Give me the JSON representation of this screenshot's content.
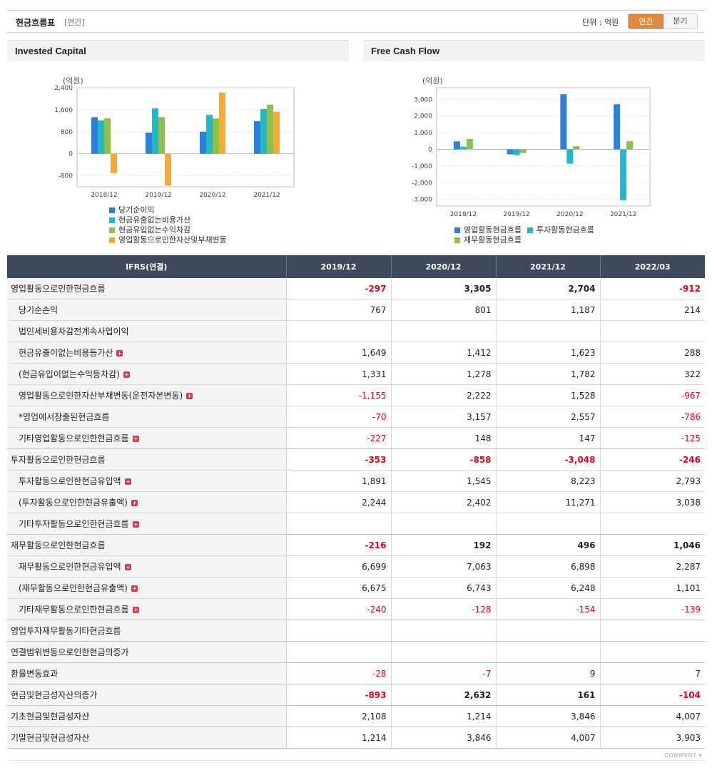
{
  "header": {
    "title": "현금흐름표",
    "period_tag": "[연간]",
    "unit": "단위 : 억원",
    "toggle": {
      "annual": "연간",
      "quarter": "분기",
      "selected": "annual"
    }
  },
  "charts": {
    "left_title": "Invested Capital",
    "right_title": "Free Cash Flow"
  },
  "chart_data": [
    {
      "type": "bar",
      "title": "Invested Capital",
      "unit_label": "(억원)",
      "categories": [
        "2018/12",
        "2019/12",
        "2020/12",
        "2021/12"
      ],
      "ylim": [
        -1200,
        2400
      ],
      "yticks": [
        2400,
        1600,
        800,
        0,
        -800
      ],
      "ytick_labels": [
        "2,400",
        "1,600",
        "800",
        "0",
        "-800"
      ],
      "grid": true,
      "legend_position": "bottom",
      "series": [
        {
          "name": "당기순이익",
          "color": "#2d7fd8",
          "values": [
            1330,
            767,
            801,
            1187
          ]
        },
        {
          "name": "현금유출없는비용가산",
          "color": "#1fb9c9",
          "values": [
            1210,
            1649,
            1412,
            1623
          ]
        },
        {
          "name": "현금유입없는수익차감",
          "color": "#8cc152",
          "values": [
            1290,
            1331,
            1278,
            1782
          ]
        },
        {
          "name": "영업활동으로인한자산및부채변동",
          "color": "#f9a830",
          "values": [
            -700,
            -1155,
            2222,
            1528
          ]
        }
      ]
    },
    {
      "type": "bar",
      "title": "Free Cash Flow",
      "unit_label": "(억원)",
      "categories": [
        "2018/12",
        "2019/12",
        "2020/12",
        "2021/12"
      ],
      "ylim": [
        -3400,
        3700
      ],
      "yticks": [
        3000,
        2000,
        1000,
        0,
        -1000,
        -2000,
        -3000
      ],
      "ytick_labels": [
        "3,000",
        "2,000",
        "1,000",
        "0",
        "-1,000",
        "-2,000",
        "-3,000"
      ],
      "grid": true,
      "legend_position": "bottom",
      "series": [
        {
          "name": "영업활동현금흐름",
          "color": "#2d7fd8",
          "values": [
            480,
            -297,
            3305,
            2704
          ]
        },
        {
          "name": "투자활동현금흐름",
          "color": "#1fb9c9",
          "values": [
            160,
            -353,
            -858,
            -3048
          ]
        },
        {
          "name": "재무활동현금흐름",
          "color": "#8cc152",
          "values": [
            620,
            -216,
            192,
            496
          ]
        }
      ]
    }
  ],
  "table": {
    "columns": [
      "IFRS(연결)",
      "2019/12",
      "2020/12",
      "2021/12",
      "2022/03"
    ],
    "rows": [
      {
        "label": "영업활동으로인한현금흐름",
        "level": 0,
        "bold": true,
        "plus": false,
        "values": [
          "-297",
          "3,305",
          "2,704",
          "-912"
        ]
      },
      {
        "label": "당기순손익",
        "level": 1,
        "bold": false,
        "plus": false,
        "values": [
          "767",
          "801",
          "1,187",
          "214"
        ]
      },
      {
        "label": "법인세비용차감전계속사업이익",
        "level": 1,
        "bold": false,
        "plus": false,
        "values": [
          "",
          "",
          "",
          ""
        ]
      },
      {
        "label": "현금유출이없는비용등가산",
        "level": 1,
        "bold": false,
        "plus": true,
        "values": [
          "1,649",
          "1,412",
          "1,623",
          "288"
        ]
      },
      {
        "label": "(현금유입이없는수익등차감)",
        "level": 1,
        "bold": false,
        "plus": true,
        "values": [
          "1,331",
          "1,278",
          "1,782",
          "322"
        ]
      },
      {
        "label": "영업활동으로인한자산부채변동(운전자본변동)",
        "level": 1,
        "bold": false,
        "plus": true,
        "values": [
          "-1,155",
          "2,222",
          "1,528",
          "-967"
        ]
      },
      {
        "label": "*영업에서창출된현금흐름",
        "level": 1,
        "bold": false,
        "plus": false,
        "values": [
          "-70",
          "3,157",
          "2,557",
          "-786"
        ]
      },
      {
        "label": "기타영업활동으로인한현금흐름",
        "level": 1,
        "bold": false,
        "plus": true,
        "values": [
          "-227",
          "148",
          "147",
          "-125"
        ]
      },
      {
        "label": "투자활동으로인한현금흐름",
        "level": 0,
        "bold": true,
        "plus": false,
        "values": [
          "-353",
          "-858",
          "-3,048",
          "-246"
        ]
      },
      {
        "label": "투자활동으로인한현금유입액",
        "level": 1,
        "bold": false,
        "plus": true,
        "values": [
          "1,891",
          "1,545",
          "8,223",
          "2,793"
        ]
      },
      {
        "label": "(투자활동으로인한현금유출액)",
        "level": 1,
        "bold": false,
        "plus": true,
        "values": [
          "2,244",
          "2,402",
          "11,271",
          "3,038"
        ]
      },
      {
        "label": "기타투자활동으로인한현금흐름",
        "level": 1,
        "bold": false,
        "plus": true,
        "values": [
          "",
          "",
          "",
          ""
        ]
      },
      {
        "label": "재무활동으로인한현금흐름",
        "level": 0,
        "bold": true,
        "plus": false,
        "values": [
          "-216",
          "192",
          "496",
          "1,046"
        ]
      },
      {
        "label": "재무활동으로인한현금유입액",
        "level": 1,
        "bold": false,
        "plus": true,
        "values": [
          "6,699",
          "7,063",
          "6,898",
          "2,287"
        ]
      },
      {
        "label": "(재무활동으로인한현금유출액)",
        "level": 1,
        "bold": false,
        "plus": true,
        "values": [
          "6,675",
          "6,743",
          "6,248",
          "1,101"
        ]
      },
      {
        "label": "기타재무활동으로인한현금흐름",
        "level": 1,
        "bold": false,
        "plus": true,
        "values": [
          "-240",
          "-128",
          "-154",
          "-139"
        ]
      },
      {
        "label": "영업투자재무활동기타현금흐름",
        "level": 0,
        "bold": false,
        "plus": false,
        "values": [
          "",
          "",
          "",
          ""
        ]
      },
      {
        "label": "연결범위변동으로인한현금의증가",
        "level": 0,
        "bold": false,
        "plus": false,
        "values": [
          "",
          "",
          "",
          ""
        ]
      },
      {
        "label": "환율변동효과",
        "level": 0,
        "bold": false,
        "plus": false,
        "values": [
          "-28",
          "-7",
          "9",
          "7"
        ]
      },
      {
        "label": "현금및현금성자산의증가",
        "level": 0,
        "bold": true,
        "plus": false,
        "values": [
          "-893",
          "2,632",
          "161",
          "-104"
        ]
      },
      {
        "label": "기초현금및현금성자산",
        "level": 0,
        "bold": false,
        "plus": false,
        "values": [
          "2,108",
          "1,214",
          "3,846",
          "4,007"
        ]
      },
      {
        "label": "기말현금및현금성자산",
        "level": 0,
        "bold": false,
        "plus": false,
        "values": [
          "1,214",
          "3,846",
          "4,007",
          "3,903"
        ]
      }
    ]
  },
  "footer": {
    "comment_label": "COMMENT"
  }
}
